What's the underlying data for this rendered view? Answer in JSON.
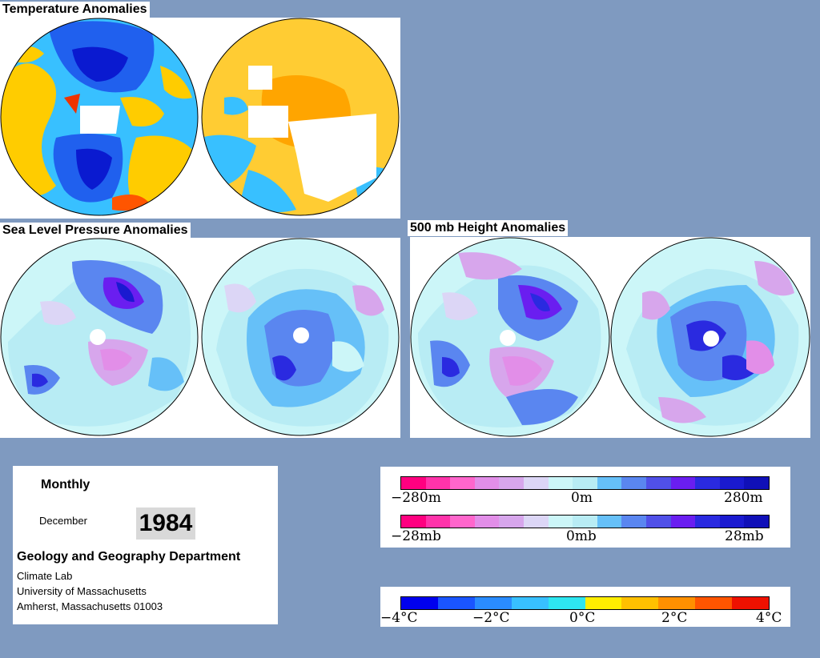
{
  "sections": {
    "temperature": "Temperature Anomalies",
    "slp": "Sea Level Pressure Anomalies",
    "height500": "500 mb Height Anomalies"
  },
  "info": {
    "period": "Monthly",
    "month": "December",
    "year": "1984",
    "department": "Geology and Geography Department",
    "lab": "Climate Lab",
    "university": "University of Massachusetts",
    "address": "Amherst, Massachusetts 01003"
  },
  "legends": {
    "height": {
      "left": "−280m",
      "mid": "0m",
      "right": "280m"
    },
    "pressure": {
      "left": "−28mb",
      "mid": "0mb",
      "right": "28mb"
    },
    "temp": {
      "t1": "−4°C",
      "t2": "−2°C",
      "t3": "0°C",
      "t4": "2°C",
      "t5": "4°C"
    }
  },
  "colors": {
    "background": "#7f9ac0",
    "anomaly_scale": [
      "#ff0080",
      "#ff33aa",
      "#ff66cc",
      "#e28ee8",
      "#d7a6ec",
      "#dcd6f6",
      "#ccf6f8",
      "#b8ecf4",
      "#66c0f8",
      "#5a86f0",
      "#5050e8",
      "#6a1ef0",
      "#2a2ae0",
      "#1a1ad0",
      "#1010b8"
    ],
    "temp_scale": [
      "#0000ee",
      "#1a55ff",
      "#2a8cff",
      "#38c0ff",
      "#2ee6f0",
      "#ffee00",
      "#ffc000",
      "#ff9000",
      "#ff5500",
      "#ee1100"
    ]
  }
}
